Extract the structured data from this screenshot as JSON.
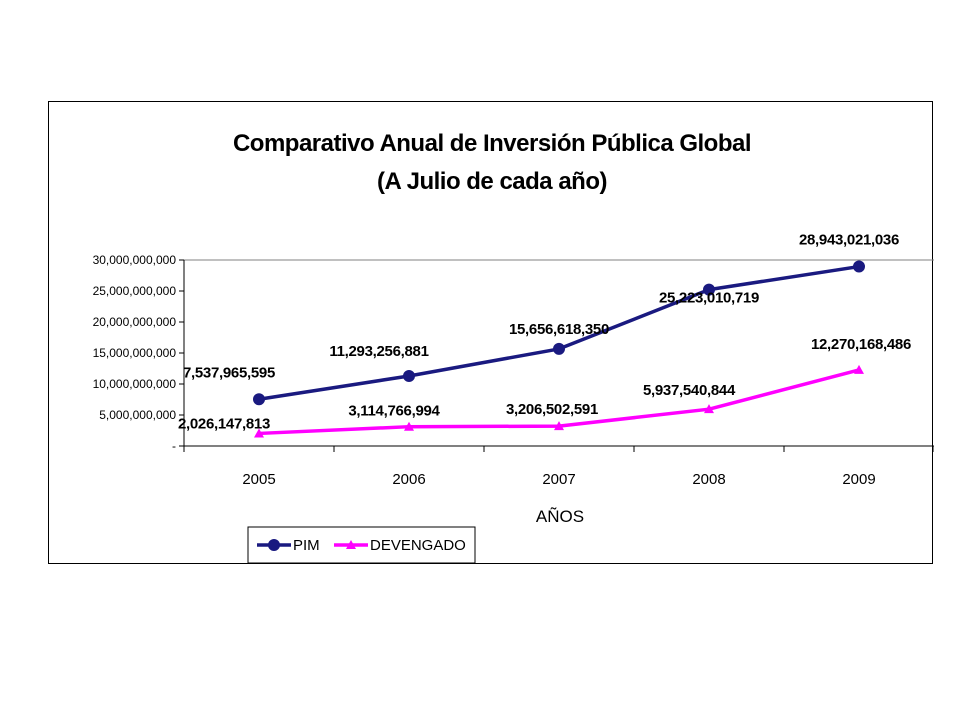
{
  "chart_data": {
    "type": "line",
    "title_line1": "Comparativo Anual de Inversión Pública Global",
    "title_line2": "(A Julio de cada año)",
    "xlabel": "AÑOS",
    "ylabel": "",
    "categories": [
      "2005",
      "2006",
      "2007",
      "2008",
      "2009"
    ],
    "ylim": [
      0,
      30000000000
    ],
    "y_ticks": [
      {
        "value": 0,
        "label": "-"
      },
      {
        "value": 5000000000,
        "label": "5,000,000,000"
      },
      {
        "value": 10000000000,
        "label": "10,000,000,000"
      },
      {
        "value": 15000000000,
        "label": "15,000,000,000"
      },
      {
        "value": 20000000000,
        "label": "20,000,000,000"
      },
      {
        "value": 25000000000,
        "label": "25,000,000,000"
      },
      {
        "value": 30000000000,
        "label": "30,000,000,000"
      }
    ],
    "grid": false,
    "legend_position": "bottom",
    "series": [
      {
        "name": "PIM",
        "color": "#1a1a80",
        "marker": "circle",
        "values": [
          7537965595,
          11293256881,
          15656618350,
          25223010719,
          28943021036
        ],
        "labels": [
          "7,537,965,595",
          "11,293,256,881",
          "15,656,618,350",
          "25,223,010,719",
          "28,943,021,036"
        ]
      },
      {
        "name": "DEVENGADO",
        "color": "#ff00ff",
        "marker": "triangle",
        "values": [
          2026147813,
          3114766994,
          3206502591,
          5937540844,
          12270168486
        ],
        "labels": [
          "2,026,147,813",
          "3,114,766,994",
          "3,206,502,591",
          "5,937,540,844",
          "12,270,168,486"
        ]
      }
    ]
  }
}
